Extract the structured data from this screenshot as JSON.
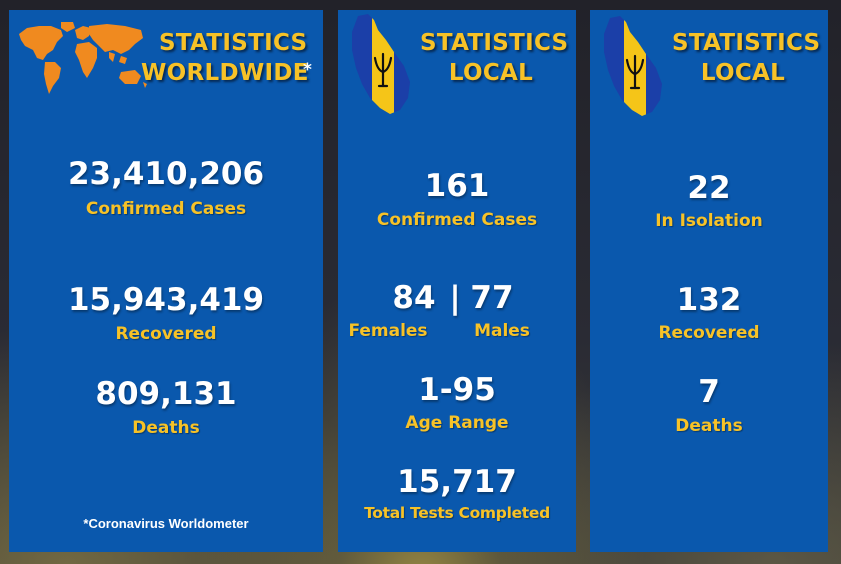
{
  "colors": {
    "panel": "#0a58ad",
    "title": "#f7c227",
    "label": "#f7c227",
    "value": "#ffffff",
    "world_map": "#f08a1f",
    "flag_blue": "#1b3fa8",
    "flag_gold": "#f5c518"
  },
  "worldwide": {
    "icon": "world-map-icon",
    "title_line1": "STATISTICS",
    "title_line2": "WORLDWIDE",
    "asterisk": "*",
    "confirmed_value": "23,410,206",
    "confirmed_label": "Confirmed Cases",
    "recovered_value": "15,943,419",
    "recovered_label": "Recovered",
    "deaths_value": "809,131",
    "deaths_label": "Deaths",
    "source_note": "*Coronavirus Worldometer"
  },
  "local_a": {
    "icon": "barbados-map-icon",
    "title_line1": "STATISTICS",
    "title_line2": "LOCAL",
    "confirmed_value": "161",
    "confirmed_label": "Confirmed Cases",
    "females_value": "84",
    "separator": "|",
    "males_value": "77",
    "females_label": "Females",
    "males_label": "Males",
    "age_value": "1-95",
    "age_label": "Age Range",
    "tests_value": "15,717",
    "tests_label": "Total Tests Completed"
  },
  "local_b": {
    "icon": "barbados-map-icon",
    "title_line1": "STATISTICS",
    "title_line2": "LOCAL",
    "isolation_value": "22",
    "isolation_label": "In Isolation",
    "recovered_value": "132",
    "recovered_label": "Recovered",
    "deaths_value": "7",
    "deaths_label": "Deaths"
  }
}
